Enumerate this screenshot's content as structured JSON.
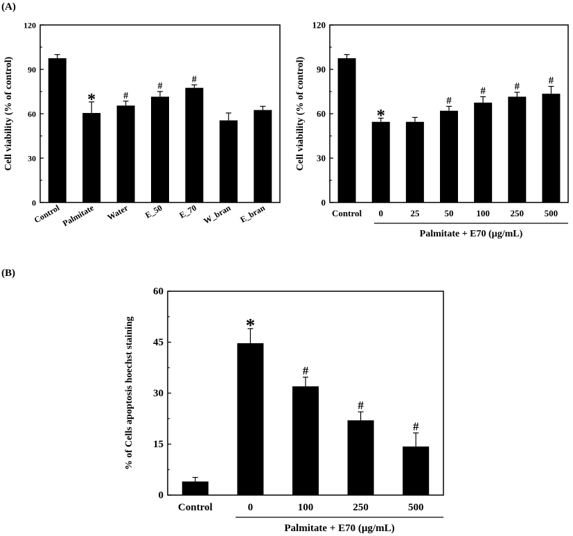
{
  "panel_labels": {
    "a": "(A)",
    "b": "(B)"
  },
  "group_label": "Palmitate + E70 (µg/mL)",
  "chart_data": [
    {
      "type": "bar",
      "panel": "A",
      "ylabel": "Cell viability (% of control)",
      "xlabel": "",
      "ylim": [
        0,
        120
      ],
      "yticks": [
        0,
        30,
        60,
        90,
        120
      ],
      "categories": [
        "Control",
        "Palmitate",
        "Water",
        "E_50",
        "E_70",
        "W_bran",
        "E_bran"
      ],
      "values": [
        97.5,
        60.5,
        65.5,
        71.5,
        77.5,
        55.5,
        62.5
      ],
      "errors": [
        2.5,
        7.5,
        3,
        3.5,
        2,
        5,
        2.5
      ],
      "annotations": [
        "",
        "*",
        "#",
        "#",
        "#",
        "",
        ""
      ]
    },
    {
      "type": "bar",
      "panel": "A",
      "ylabel": "Cell viability (% of control)",
      "xlabel": "Palmitate + E70 (µg/mL)",
      "ylim": [
        0,
        120
      ],
      "yticks": [
        0,
        30,
        60,
        90,
        120
      ],
      "categories": [
        "Control",
        "0",
        "25",
        "50",
        "100",
        "250",
        "500"
      ],
      "values": [
        97.5,
        54.5,
        54.5,
        62,
        67.5,
        71.5,
        73.5
      ],
      "errors": [
        2.5,
        2.5,
        3,
        3,
        4,
        3,
        5
      ],
      "annotations": [
        "",
        "*",
        "",
        "#",
        "#",
        "#",
        "#"
      ]
    },
    {
      "type": "bar",
      "panel": "B",
      "ylabel": "% of Cells apoptosis hoechst staining",
      "xlabel": "Palmitate + E70 (µg/mL)",
      "ylim": [
        0,
        60
      ],
      "yticks": [
        0,
        15,
        30,
        45,
        60
      ],
      "categories": [
        "Control",
        "0",
        "100",
        "250",
        "500"
      ],
      "values": [
        4,
        44.7,
        32,
        22,
        14.3
      ],
      "errors": [
        1.2,
        4.3,
        2.7,
        2.5,
        4
      ],
      "annotations": [
        "",
        "*",
        "#",
        "#",
        "#"
      ]
    }
  ]
}
